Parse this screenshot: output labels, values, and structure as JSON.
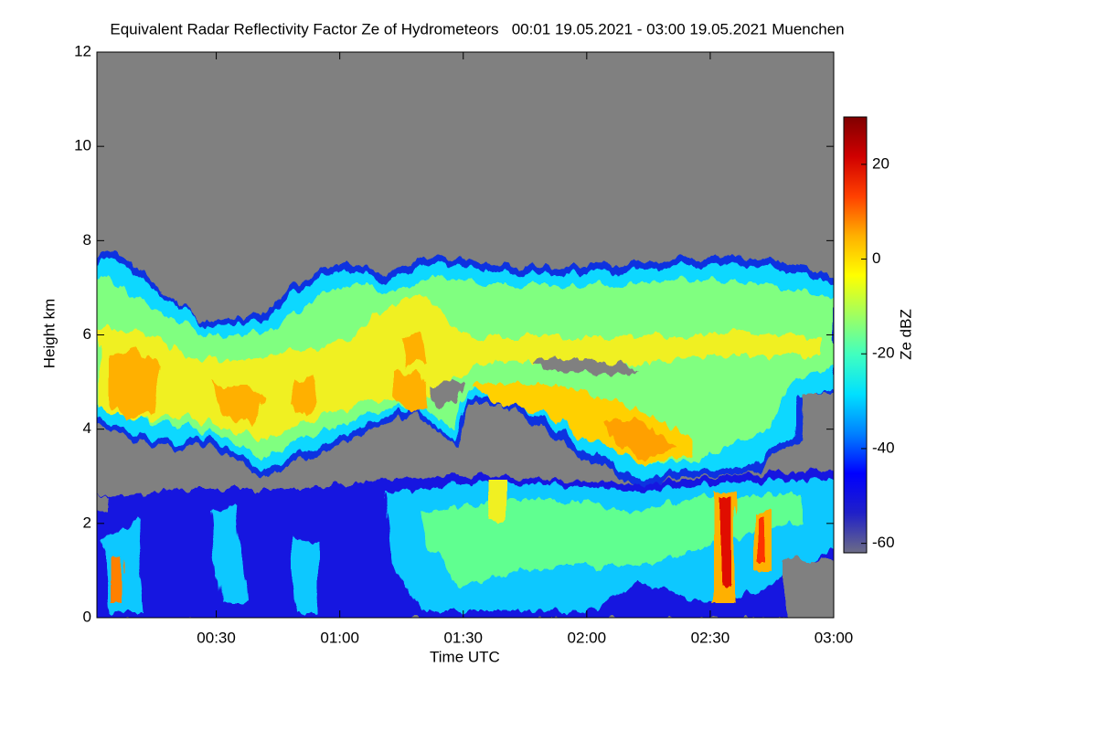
{
  "chart_data": {
    "type": "heatmap",
    "title": "Equivalent Radar Reflectivity Factor Ze of Hydrometeors   00:01 19.05.2021 - 03:00 19.05.2021 Muenchen",
    "x_label": "Time UTC",
    "y_label": "Height km",
    "xlim": [
      1,
      180
    ],
    "xticks": [
      {
        "value": 30,
        "label": "00:30"
      },
      {
        "value": 60,
        "label": "01:00"
      },
      {
        "value": 90,
        "label": "01:30"
      },
      {
        "value": 120,
        "label": "02:00"
      },
      {
        "value": 150,
        "label": "02:30"
      },
      {
        "value": 180,
        "label": "03:00"
      }
    ],
    "ylim": [
      0,
      12
    ],
    "yticks": [
      0,
      2,
      4,
      6,
      8,
      10,
      12
    ],
    "colorbar": {
      "label": "Ze dBZ",
      "zlim": [
        -62,
        30
      ],
      "ticks": [
        -60,
        -40,
        -20,
        0,
        20
      ],
      "colormap": [
        "#6c6c86",
        "#2020c8",
        "#0000ff",
        "#0080ff",
        "#00e0ff",
        "#40ffc0",
        "#a0ff60",
        "#ffff00",
        "#ffb000",
        "#ff4000",
        "#d00000",
        "#800000"
      ]
    },
    "background": "#808080"
  }
}
